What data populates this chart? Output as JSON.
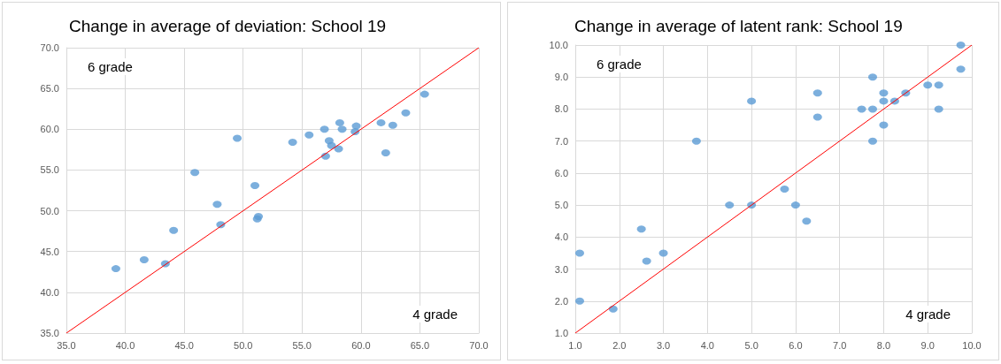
{
  "chart_data": [
    {
      "type": "scatter",
      "title": "Change in average of deviation: School 19",
      "grid": true,
      "marker": "circle",
      "xlim": [
        35,
        70
      ],
      "xticks": [
        {
          "value": 35,
          "label": "35.0"
        },
        {
          "value": 40,
          "label": "40.0"
        },
        {
          "value": 45,
          "label": "45.0"
        },
        {
          "value": 50,
          "label": "50.0"
        },
        {
          "value": 55,
          "label": "55.0"
        },
        {
          "value": 60,
          "label": "60.0"
        },
        {
          "value": 65,
          "label": "65.0"
        },
        {
          "value": 70,
          "label": "70.0"
        }
      ],
      "ylim": [
        35,
        70
      ],
      "yticks": [
        {
          "value": 35,
          "label": "35.0"
        },
        {
          "value": 40,
          "label": "40.0"
        },
        {
          "value": 45,
          "label": "45.0"
        },
        {
          "value": 50,
          "label": "50.0"
        },
        {
          "value": 55,
          "label": "55.0"
        },
        {
          "value": 60,
          "label": "60.0"
        },
        {
          "value": 65,
          "label": "65.0"
        },
        {
          "value": 70,
          "label": "70.0"
        }
      ],
      "annotations": [
        "6 grade",
        "4 grade"
      ],
      "series": [
        {
          "color": "#5b9bd5",
          "x": [
            39.2,
            41.6,
            43.4,
            44.1,
            45.9,
            47.8,
            48.1,
            49.5,
            51.0,
            51.3,
            51.2,
            54.2,
            55.6,
            56.9,
            58.2,
            58.4,
            57.3,
            57.5,
            58.1,
            57.0,
            59.6,
            59.5,
            61.7,
            62.7,
            62.1,
            63.8,
            65.4
          ],
          "values": [
            42.9,
            44.0,
            43.5,
            47.6,
            54.7,
            50.8,
            48.3,
            58.9,
            53.1,
            49.3,
            49.0,
            58.4,
            59.3,
            60.0,
            60.8,
            60.0,
            58.6,
            58.0,
            57.6,
            56.7,
            60.4,
            59.7,
            60.8,
            60.5,
            57.1,
            62.0,
            64.3
          ]
        },
        {
          "type": "line",
          "color": "#ff0000",
          "marker": "none",
          "line_style": "solid",
          "x": [
            35,
            70
          ],
          "values": [
            35,
            70
          ]
        }
      ]
    },
    {
      "type": "scatter",
      "title": "Change in average of latent rank: School 19",
      "grid": true,
      "marker": "circle",
      "xlim": [
        1,
        10
      ],
      "xticks": [
        {
          "value": 1,
          "label": "1.0"
        },
        {
          "value": 2,
          "label": "2.0"
        },
        {
          "value": 3,
          "label": "3.0"
        },
        {
          "value": 4,
          "label": "4.0"
        },
        {
          "value": 5,
          "label": "5.0"
        },
        {
          "value": 6,
          "label": "6.0"
        },
        {
          "value": 7,
          "label": "7.0"
        },
        {
          "value": 8,
          "label": "8.0"
        },
        {
          "value": 9,
          "label": "9.0"
        },
        {
          "value": 10,
          "label": "10.0"
        }
      ],
      "ylim": [
        1,
        10
      ],
      "yticks": [
        {
          "value": 1,
          "label": "1.0"
        },
        {
          "value": 2,
          "label": "2.0"
        },
        {
          "value": 3,
          "label": "3.0"
        },
        {
          "value": 4,
          "label": "4.0"
        },
        {
          "value": 5,
          "label": "5.0"
        },
        {
          "value": 6,
          "label": "6.0"
        },
        {
          "value": 7,
          "label": "7.0"
        },
        {
          "value": 8,
          "label": "8.0"
        },
        {
          "value": 9,
          "label": "9.0"
        },
        {
          "value": 10,
          "label": "10.0"
        }
      ],
      "annotations": [
        "6 grade",
        "4 grade"
      ],
      "series": [
        {
          "color": "#5b9bd5",
          "x": [
            1.1,
            1.1,
            1.86,
            2.5,
            2.62,
            3.0,
            3.75,
            4.5,
            5.0,
            5.0,
            5.75,
            6.0,
            6.25,
            6.5,
            6.5,
            7.5,
            7.75,
            7.75,
            7.75,
            8.0,
            8.0,
            8.0,
            8.25,
            8.5,
            9.0,
            9.25,
            9.25,
            9.75,
            9.75
          ],
          "values": [
            3.5,
            2.0,
            1.75,
            4.25,
            3.25,
            3.5,
            7.0,
            5.0,
            5.0,
            8.25,
            5.5,
            5.0,
            4.5,
            8.5,
            7.75,
            8.0,
            8.0,
            9.0,
            7.0,
            8.5,
            8.25,
            7.5,
            8.25,
            8.5,
            8.75,
            8.75,
            8.0,
            10.0,
            9.25
          ]
        },
        {
          "type": "line",
          "color": "#ff0000",
          "marker": "none",
          "line_style": "solid",
          "x": [
            1,
            10
          ],
          "values": [
            1,
            10
          ]
        }
      ]
    }
  ]
}
